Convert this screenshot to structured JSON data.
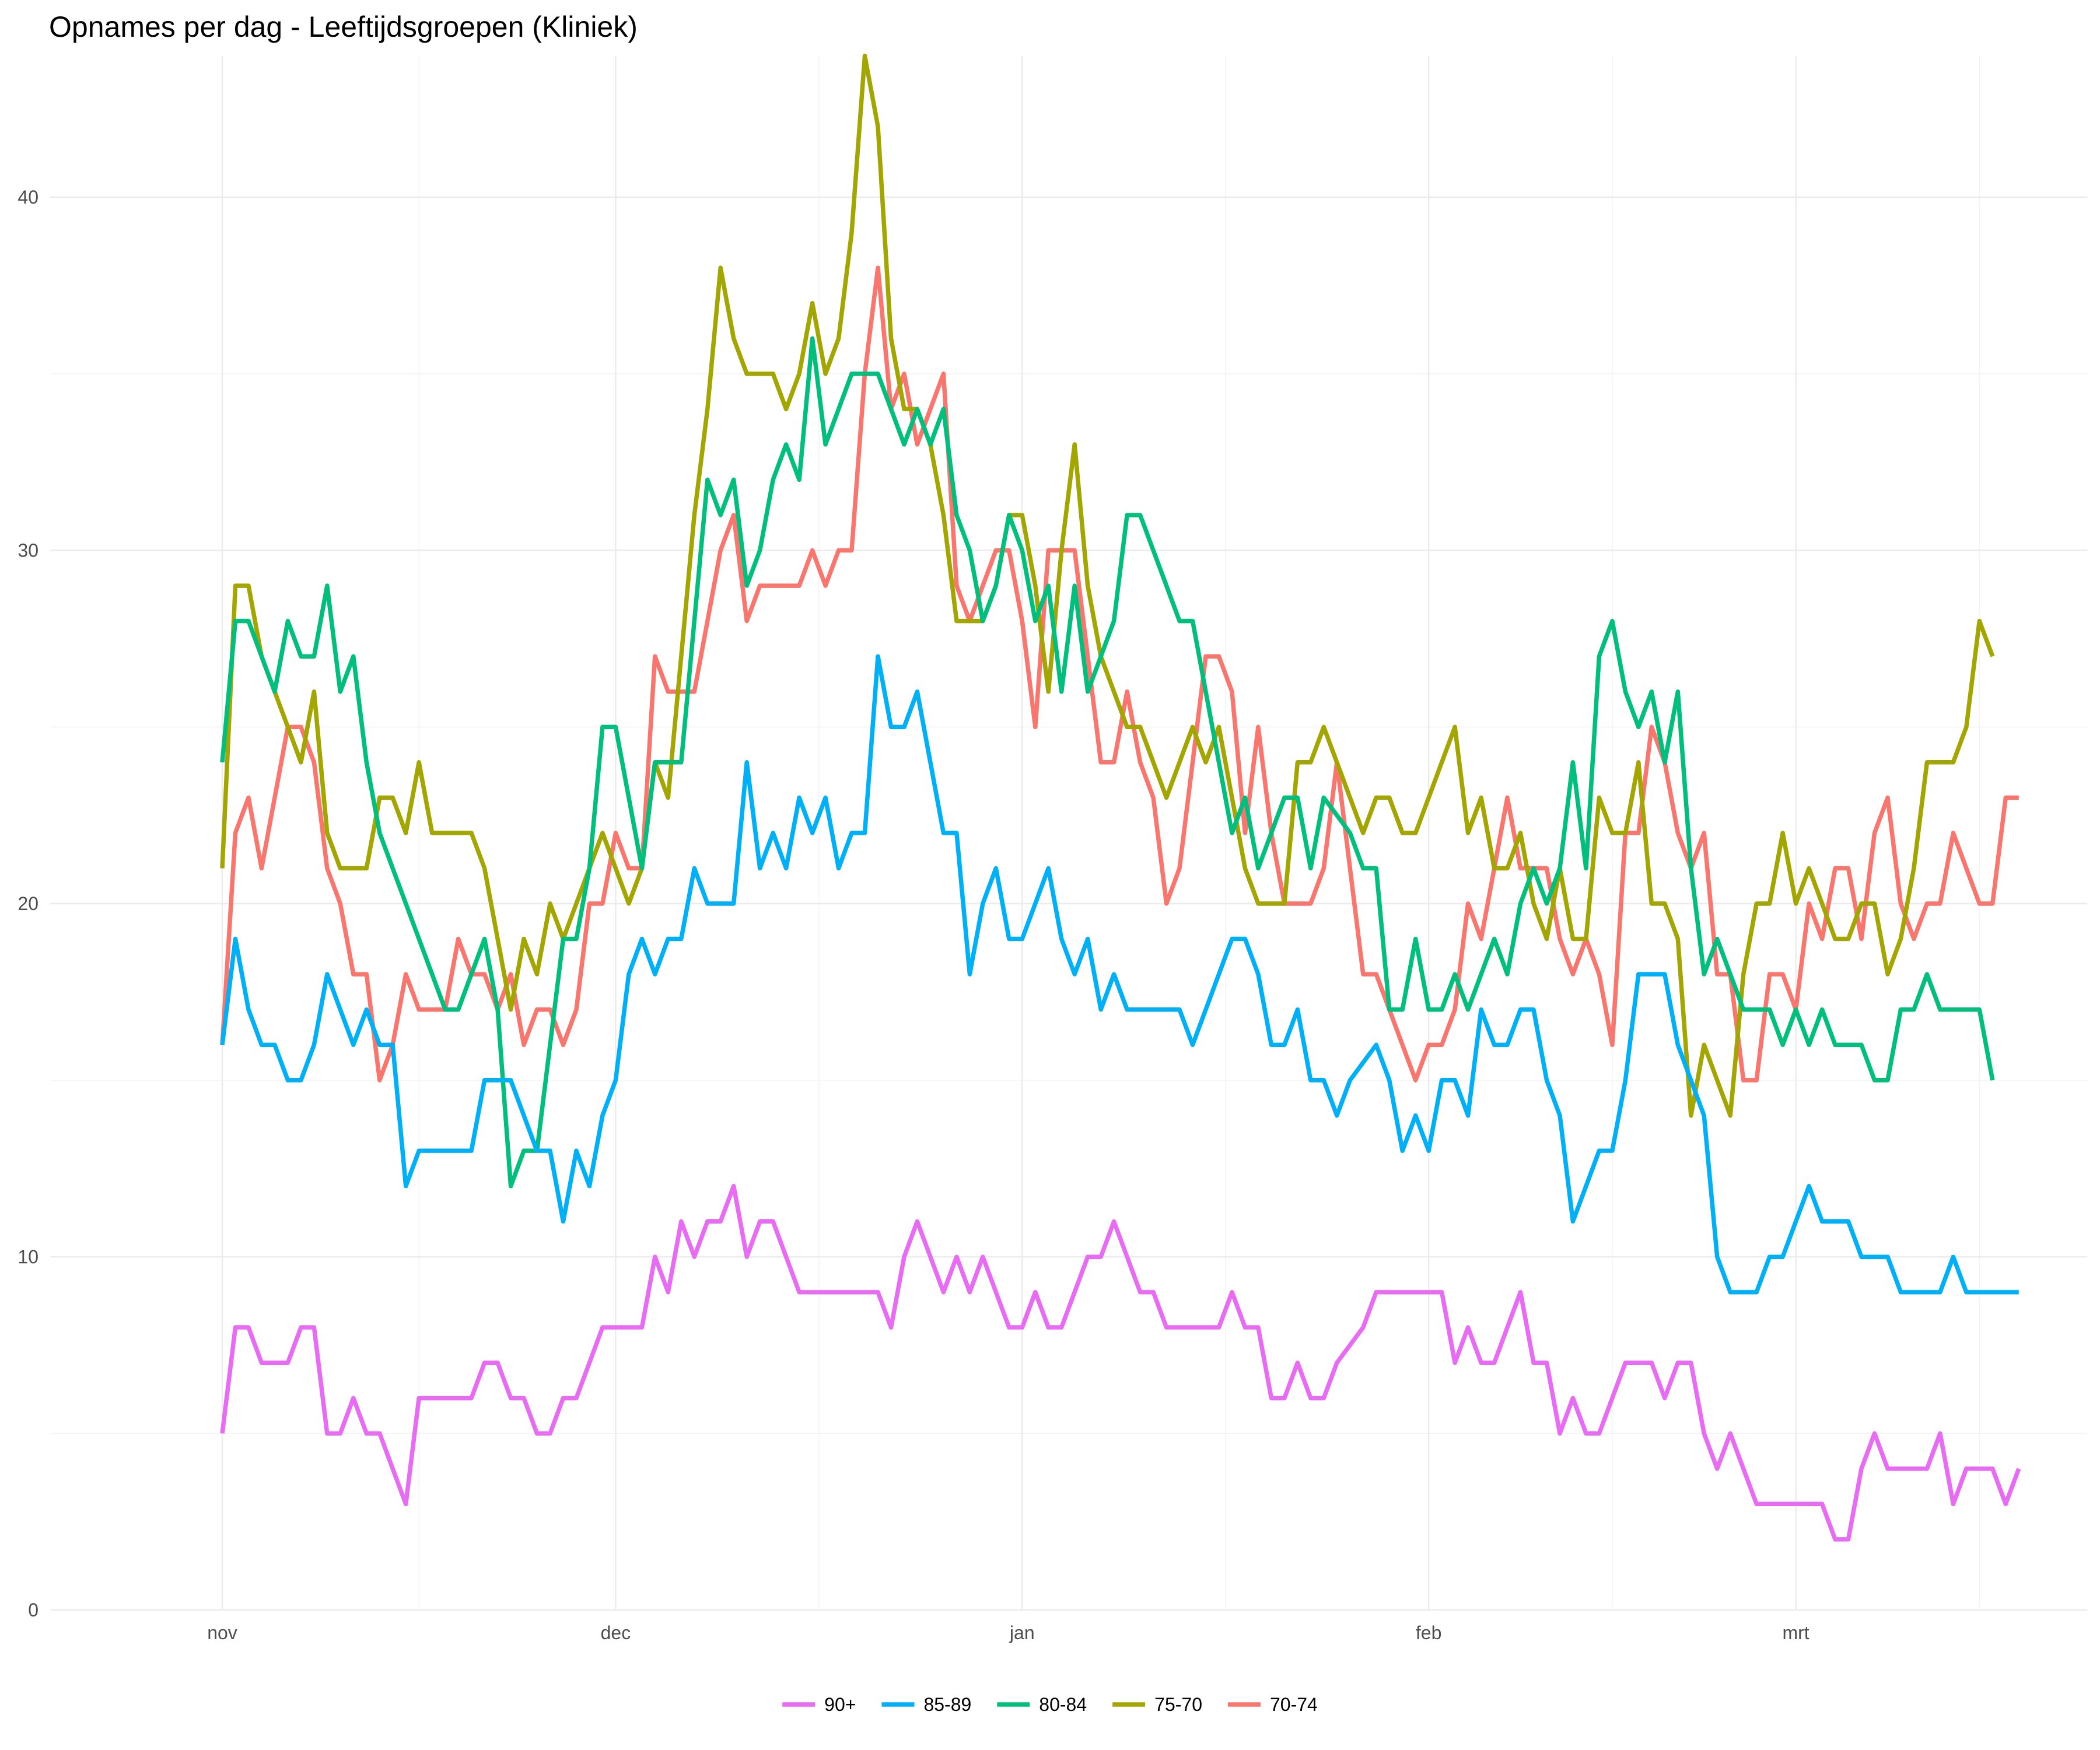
{
  "chart_data": {
    "type": "line",
    "title": "Opnames per dag - Leeftijdsgroepen (Kliniek)",
    "xlabel": "",
    "ylabel": "",
    "ylim": [
      0,
      44
    ],
    "xlim_days": [
      -2,
      142
    ],
    "x_start_date": "2020-11-10",
    "x_ticks": [
      {
        "label": "nov",
        "day": 0
      },
      {
        "label": "dec",
        "day": 30
      },
      {
        "label": "jan",
        "day": 61
      },
      {
        "label": "feb",
        "day": 92
      },
      {
        "label": "mrt",
        "day": 120
      }
    ],
    "y_ticks": [
      0,
      10,
      20,
      30,
      40
    ],
    "grid": true,
    "legend_position": "bottom",
    "series": [
      {
        "name": "90+",
        "color": "#E76BF3",
        "values": [
          5,
          8,
          8,
          7,
          7,
          7,
          8,
          8,
          5,
          5,
          6,
          5,
          5,
          4,
          3,
          6,
          6,
          6,
          6,
          6,
          7,
          7,
          6,
          6,
          5,
          5,
          6,
          6,
          7,
          8,
          8,
          8,
          8,
          10,
          9,
          11,
          10,
          11,
          11,
          12,
          10,
          11,
          11,
          10,
          9,
          9,
          9,
          9,
          9,
          9,
          9,
          8,
          10,
          11,
          10,
          9,
          10,
          9,
          10,
          9,
          8,
          8,
          9,
          8,
          8,
          9,
          10,
          10,
          11,
          10,
          9,
          9,
          8,
          8,
          8,
          8,
          8,
          9,
          8,
          8,
          6,
          6,
          7,
          6,
          6,
          7,
          7.5,
          8,
          9,
          9,
          9,
          9,
          9,
          9,
          7,
          8,
          7,
          7,
          8,
          9,
          7,
          7,
          5,
          6,
          5,
          5,
          6,
          7,
          7,
          7,
          6,
          7,
          7,
          5,
          4,
          5,
          4,
          3,
          3,
          3,
          3,
          3,
          3,
          2,
          2,
          4,
          5,
          4,
          4,
          4,
          4,
          5,
          3,
          4,
          4,
          4,
          3,
          4
        ]
      },
      {
        "name": "85-89",
        "color": "#00B0F6",
        "values": [
          16,
          19,
          17,
          16,
          16,
          15,
          15,
          16,
          18,
          17,
          16,
          17,
          16,
          16,
          12,
          13,
          13,
          13,
          13,
          13,
          15,
          15,
          15,
          14,
          13,
          13,
          11,
          13,
          12,
          14,
          15,
          18,
          19,
          18,
          19,
          19,
          21,
          20,
          20,
          20,
          24,
          21,
          22,
          21,
          23,
          22,
          23,
          21,
          22,
          22,
          27,
          25,
          25,
          26,
          24,
          22,
          22,
          18,
          20,
          21,
          19,
          19,
          20,
          21,
          19,
          18,
          19,
          17,
          18,
          17,
          17,
          17,
          17,
          17,
          16,
          17,
          18,
          19,
          19,
          18,
          16,
          16,
          17,
          15,
          15,
          14,
          15,
          15.5,
          16,
          15,
          13,
          14,
          13,
          15,
          15,
          14,
          17,
          16,
          16,
          17,
          17,
          15,
          14,
          11,
          12,
          13,
          13,
          15,
          18,
          18,
          18,
          16,
          15,
          14,
          10,
          9,
          9,
          9,
          10,
          10,
          11,
          12,
          11,
          11,
          11,
          10,
          10,
          10,
          9,
          9,
          9,
          9,
          10,
          9,
          9,
          9,
          9,
          9
        ]
      },
      {
        "name": "80-84",
        "color": "#00BF7D",
        "values": [
          24,
          28,
          28,
          27,
          26,
          28,
          27,
          27,
          29,
          26,
          27,
          24,
          22,
          21,
          20,
          19,
          18,
          17,
          17,
          18,
          19,
          17,
          12,
          13,
          13,
          16,
          19,
          19,
          21,
          25,
          25,
          23,
          21,
          24,
          24,
          24,
          28,
          32,
          31,
          32,
          29,
          30,
          32,
          33,
          32,
          36,
          33,
          34,
          35,
          35,
          35,
          34,
          33,
          34,
          33,
          34,
          31,
          30,
          28,
          29,
          31,
          30,
          28,
          29,
          26,
          29,
          26,
          27,
          28,
          31,
          31,
          30,
          29,
          28,
          28,
          26,
          24,
          22,
          23,
          21,
          22,
          23,
          23,
          21,
          23,
          22.5,
          22,
          21,
          21,
          17,
          17,
          19,
          17,
          17,
          18,
          17,
          18,
          19,
          18,
          20,
          21,
          20,
          21,
          24,
          21,
          27,
          28,
          26,
          25,
          26,
          24,
          26,
          21,
          18,
          19,
          18,
          17,
          17,
          17,
          16,
          17,
          16,
          17,
          16,
          16,
          16,
          15,
          15,
          17,
          17,
          18,
          17,
          17,
          17,
          17,
          15
        ]
      },
      {
        "name": "75-70",
        "color": "#A3A500",
        "values": [
          21,
          29,
          29,
          27,
          26,
          25,
          24,
          26,
          22,
          21,
          21,
          21,
          23,
          23,
          22,
          24,
          22,
          22,
          22,
          22,
          21,
          19,
          17,
          19,
          18,
          20,
          19,
          20,
          21,
          22,
          21,
          20,
          21,
          24,
          23,
          27,
          31,
          34,
          38,
          36,
          35,
          35,
          35,
          34,
          35,
          37,
          35,
          36,
          39,
          44,
          42,
          36,
          34,
          34,
          33,
          31,
          28,
          28,
          28,
          29,
          31,
          31,
          29,
          26,
          30,
          33,
          29,
          27,
          26,
          25,
          25,
          24,
          23,
          24,
          25,
          24,
          25,
          23,
          21,
          20,
          20,
          20,
          24,
          24,
          25,
          24,
          23,
          22,
          23,
          23,
          22,
          22,
          23,
          24,
          25,
          22,
          23,
          21,
          21,
          22,
          20,
          19,
          21,
          19,
          19,
          23,
          22,
          22,
          24,
          20,
          20,
          19,
          14,
          16,
          15,
          14,
          18,
          20,
          20,
          22,
          20,
          21,
          20,
          19,
          19,
          20,
          20,
          18,
          19,
          21,
          24,
          24,
          24,
          25,
          28,
          27
        ]
      },
      {
        "name": "70-74",
        "color": "#F8766D",
        "values": [
          16,
          22,
          23,
          21,
          23,
          25,
          25,
          24,
          21,
          20,
          18,
          18,
          15,
          16,
          18,
          17,
          17,
          17,
          19,
          18,
          18,
          17,
          18,
          16,
          17,
          17,
          16,
          17,
          20,
          20,
          22,
          21,
          21,
          27,
          26,
          26,
          26,
          28,
          30,
          31,
          28,
          29,
          29,
          29,
          29,
          30,
          29,
          30,
          30,
          35,
          38,
          34,
          35,
          33,
          34,
          35,
          29,
          28,
          29,
          30,
          30,
          28,
          25,
          30,
          30,
          30,
          27,
          24,
          24,
          26,
          24,
          23,
          20,
          21,
          24,
          27,
          27,
          26,
          22,
          25,
          22,
          20,
          20,
          20,
          21,
          24,
          21,
          18,
          18,
          17,
          16,
          15,
          16,
          16,
          17,
          20,
          19,
          21,
          23,
          21,
          21,
          21,
          19,
          18,
          19,
          18,
          16,
          22,
          22,
          25,
          24,
          22,
          21,
          22,
          18,
          18,
          15,
          15,
          18,
          18,
          17,
          20,
          19,
          21,
          21,
          19,
          22,
          23,
          20,
          19,
          20,
          20,
          22,
          21,
          20,
          20,
          23,
          23
        ]
      }
    ]
  }
}
